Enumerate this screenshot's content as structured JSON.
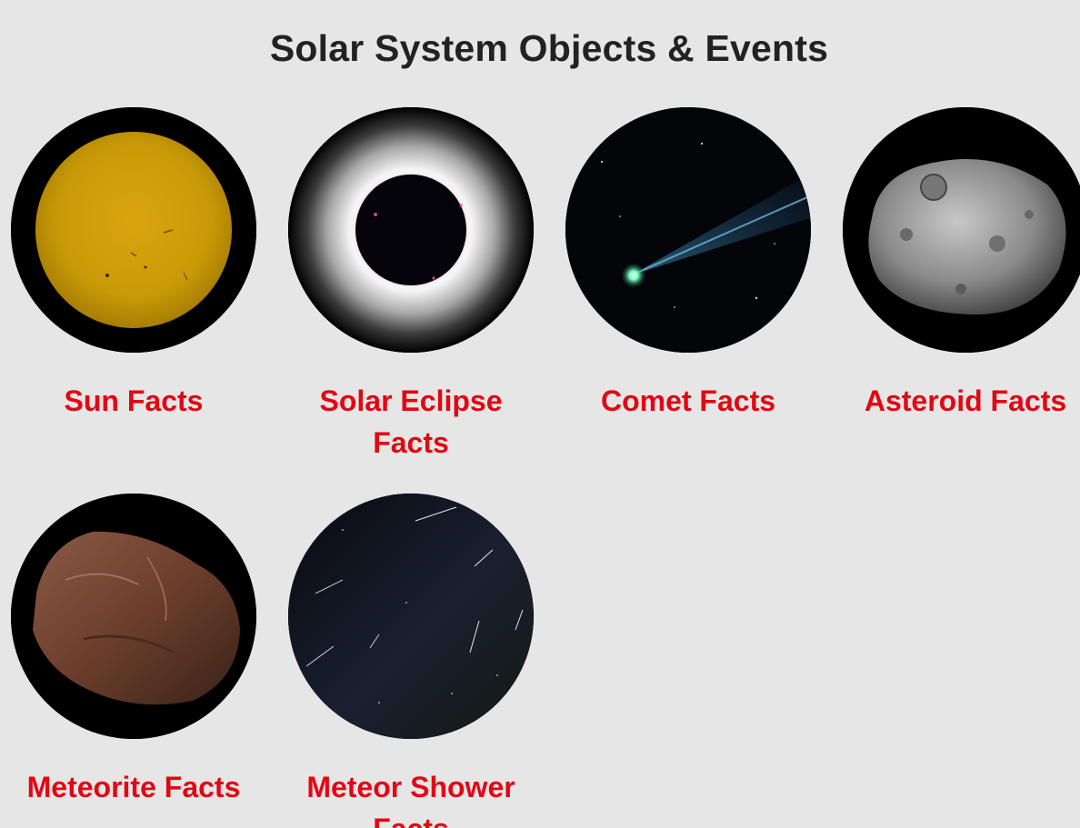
{
  "page": {
    "title": "Solar System Objects & Events"
  },
  "colors": {
    "background": "#e6e6e6",
    "title": "#222222",
    "link": "#e30613"
  },
  "cards": [
    {
      "label": "Sun Facts",
      "image": "sun-photo"
    },
    {
      "label": "Solar Eclipse Facts",
      "image": "solar-eclipse-photo"
    },
    {
      "label": "Comet Facts",
      "image": "comet-photo"
    },
    {
      "label": "Asteroid Facts",
      "image": "asteroid-photo"
    },
    {
      "label": "Meteorite Facts",
      "image": "meteorite-photo"
    },
    {
      "label": "Meteor Shower Facts",
      "image": "meteor-shower-photo"
    }
  ]
}
